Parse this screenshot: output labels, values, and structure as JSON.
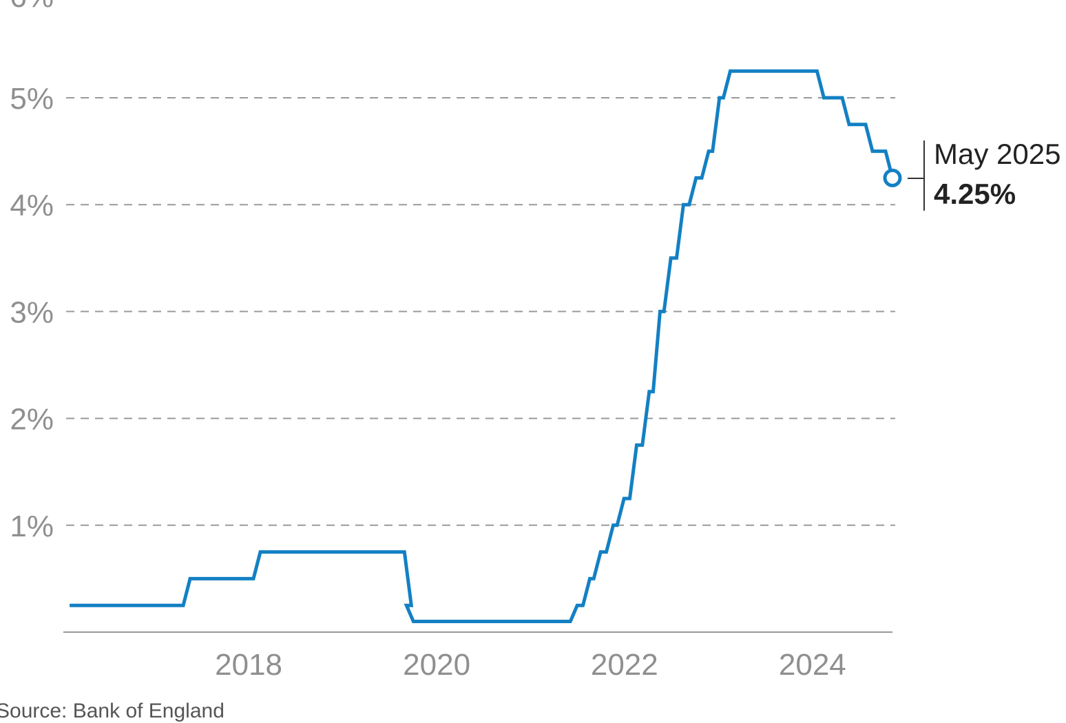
{
  "chart_data": {
    "type": "line",
    "title": "",
    "xlabel": "",
    "ylabel": "",
    "ylim": [
      0,
      5
    ],
    "xlim": [
      "2016-08-01",
      "2025-05-08"
    ],
    "yticks": [
      "1%",
      "2%",
      "3%",
      "4%",
      "5%"
    ],
    "xticks": [
      "2018",
      "2020",
      "2022",
      "2024"
    ],
    "grid": true,
    "series": [
      {
        "color": "#1380c3",
        "points": [
          [
            "2016-08-04",
            0.25
          ],
          [
            "2017-11-02",
            0.5
          ],
          [
            "2018-08-02",
            0.75
          ],
          [
            "2020-03-11",
            0.25
          ],
          [
            "2020-03-19",
            0.1
          ],
          [
            "2021-12-16",
            0.25
          ],
          [
            "2022-02-03",
            0.5
          ],
          [
            "2022-03-17",
            0.75
          ],
          [
            "2022-05-05",
            1.0
          ],
          [
            "2022-06-16",
            1.25
          ],
          [
            "2022-08-04",
            1.75
          ],
          [
            "2022-09-22",
            2.25
          ],
          [
            "2022-11-03",
            3.0
          ],
          [
            "2022-12-15",
            3.5
          ],
          [
            "2023-02-02",
            4.0
          ],
          [
            "2023-03-23",
            4.25
          ],
          [
            "2023-05-11",
            4.5
          ],
          [
            "2023-06-22",
            5.0
          ],
          [
            "2023-08-03",
            5.25
          ],
          [
            "2024-08-01",
            5.0
          ],
          [
            "2024-11-07",
            4.75
          ],
          [
            "2025-02-06",
            4.5
          ],
          [
            "2025-05-08",
            4.25
          ]
        ]
      }
    ],
    "annotation": {
      "date_label": "May 2025",
      "value_label": "4.25%"
    }
  },
  "source_text": "Source: Bank of England"
}
